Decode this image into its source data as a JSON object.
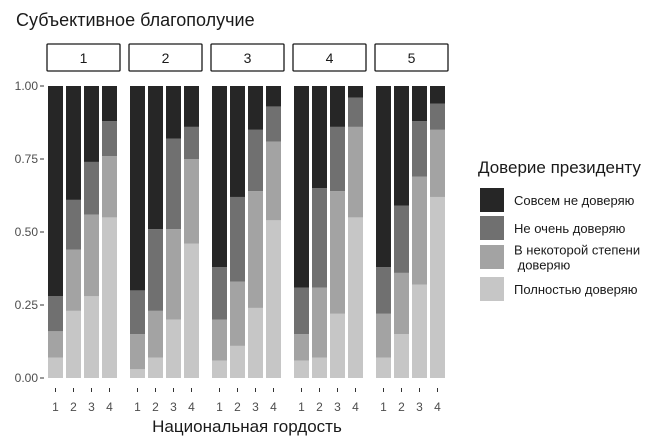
{
  "chart_data": {
    "type": "bar",
    "stacked": true,
    "normalized": true,
    "title": "Субъективное благополучие",
    "xlabel": "Национальная гордость",
    "ylabel": "",
    "ylim": [
      0,
      1
    ],
    "yticks": [
      "0.00",
      "0.25",
      "0.50",
      "0.75",
      "1.00"
    ],
    "grid": false,
    "legend_position": "right",
    "legend_title": "Доверие президенту",
    "panels": [
      "1",
      "2",
      "3",
      "4",
      "5"
    ],
    "categories": [
      "1",
      "2",
      "3",
      "4"
    ],
    "series": [
      {
        "name": "Полностью доверяю",
        "color": "#c6c6c6",
        "values": [
          [
            0.07,
            0.23,
            0.28,
            0.55
          ],
          [
            0.03,
            0.07,
            0.2,
            0.46
          ],
          [
            0.06,
            0.11,
            0.24,
            0.54
          ],
          [
            0.06,
            0.07,
            0.22,
            0.55
          ],
          [
            0.07,
            0.15,
            0.32,
            0.62
          ]
        ]
      },
      {
        "name": "В некоторой степени\n доверяю",
        "color": "#a3a3a3",
        "values": [
          [
            0.09,
            0.21,
            0.28,
            0.21
          ],
          [
            0.12,
            0.16,
            0.31,
            0.29
          ],
          [
            0.14,
            0.22,
            0.4,
            0.27
          ],
          [
            0.09,
            0.24,
            0.42,
            0.31
          ],
          [
            0.15,
            0.21,
            0.37,
            0.23
          ]
        ]
      },
      {
        "name": "Не очень доверяю",
        "color": "#707070",
        "values": [
          [
            0.12,
            0.17,
            0.18,
            0.12
          ],
          [
            0.15,
            0.28,
            0.31,
            0.11
          ],
          [
            0.18,
            0.29,
            0.21,
            0.12
          ],
          [
            0.16,
            0.34,
            0.22,
            0.1
          ],
          [
            0.16,
            0.23,
            0.19,
            0.09
          ]
        ]
      },
      {
        "name": "Совсем не доверяю",
        "color": "#262626",
        "values": [
          [
            0.72,
            0.39,
            0.26,
            0.12
          ],
          [
            0.7,
            0.49,
            0.18,
            0.14
          ],
          [
            0.62,
            0.38,
            0.15,
            0.07
          ],
          [
            0.69,
            0.35,
            0.14,
            0.04
          ],
          [
            0.62,
            0.41,
            0.12,
            0.06
          ]
        ]
      }
    ]
  }
}
